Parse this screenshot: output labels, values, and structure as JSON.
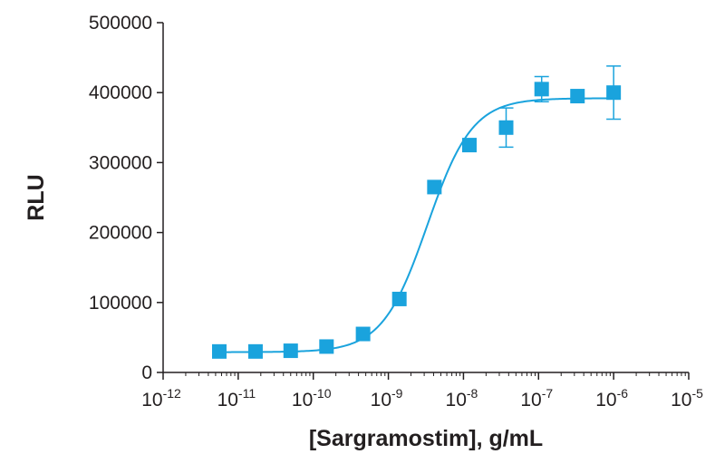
{
  "chart_data": {
    "type": "scatter",
    "title": "",
    "xlabel": "[Sargramostim], g/mL",
    "ylabel": "RLU",
    "x_scale": "log",
    "xlim": [
      1e-12,
      1e-05
    ],
    "ylim": [
      0,
      500000
    ],
    "x_ticks": [
      {
        "base": "10",
        "exp": "-12",
        "value": 1e-12
      },
      {
        "base": "10",
        "exp": "-11",
        "value": 1e-11
      },
      {
        "base": "10",
        "exp": "-10",
        "value": 1e-10
      },
      {
        "base": "10",
        "exp": "-9",
        "value": 1e-09
      },
      {
        "base": "10",
        "exp": "-8",
        "value": 1e-08
      },
      {
        "base": "10",
        "exp": "-7",
        "value": 1e-07
      },
      {
        "base": "10",
        "exp": "-6",
        "value": 1e-06
      },
      {
        "base": "10",
        "exp": "-5",
        "value": 1e-05
      }
    ],
    "y_ticks": [
      "0",
      "100000",
      "200000",
      "300000",
      "400000",
      "500000"
    ],
    "grid": false,
    "legend": "none",
    "series": [
      {
        "points": [
          {
            "x": 5.6e-12,
            "y": 30000,
            "err": 0
          },
          {
            "x": 1.7e-11,
            "y": 30000,
            "err": 0
          },
          {
            "x": 5e-11,
            "y": 31000,
            "err": 0
          },
          {
            "x": 1.5e-10,
            "y": 37000,
            "err": 0
          },
          {
            "x": 4.6e-10,
            "y": 55000,
            "err": 0
          },
          {
            "x": 1.4e-09,
            "y": 105000,
            "err": 0
          },
          {
            "x": 4.1e-09,
            "y": 265000,
            "err": 0
          },
          {
            "x": 1.2e-08,
            "y": 325000,
            "err": 0
          },
          {
            "x": 3.7e-08,
            "y": 350000,
            "err": 28000
          },
          {
            "x": 1.1e-07,
            "y": 405000,
            "err": 18000
          },
          {
            "x": 3.3e-07,
            "y": 395000,
            "err": 0
          },
          {
            "x": 1e-06,
            "y": 400000,
            "err": 38000
          }
        ]
      }
    ],
    "fit": {
      "model": "4PL",
      "bottom": 29000,
      "top": 392000,
      "ec50": 3.3e-09,
      "hill": 1.45
    },
    "colors": {
      "marker": "#1aa3dd",
      "curve": "#1aa3dd",
      "axis": "#231f20",
      "text": "#231f20"
    }
  }
}
